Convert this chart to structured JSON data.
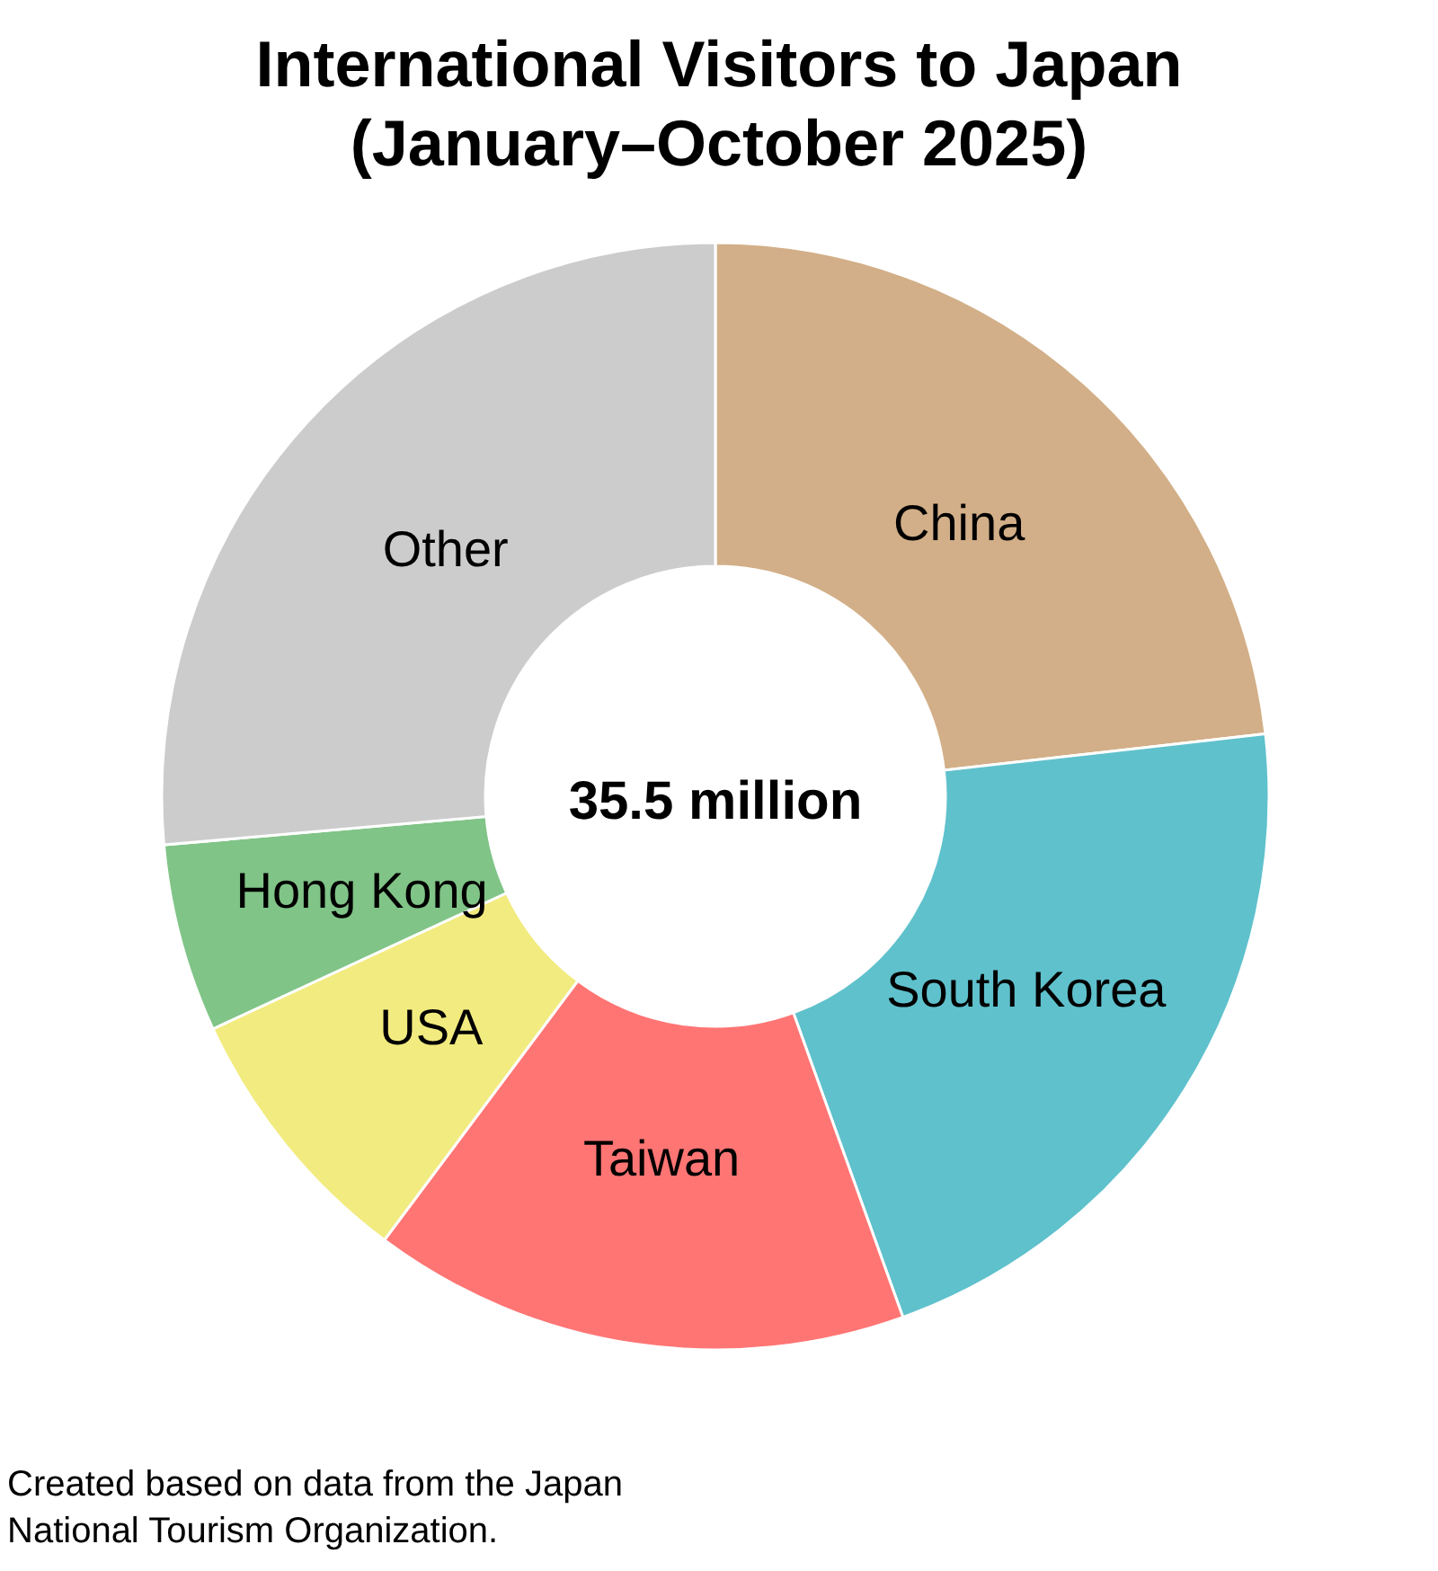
{
  "chart_data": {
    "type": "donut",
    "title": "International Visitors to Japan\n(January–October 2025)",
    "categories": [
      "China",
      "South Korea",
      "Taiwan",
      "USA",
      "Hong Kong",
      "Other"
    ],
    "values": [
      23.2,
      21.3,
      15.7,
      7.9,
      5.5,
      26.4
    ],
    "colors": [
      "#d2af88",
      "#5fc1cc",
      "#ff7574",
      "#f2eb7f",
      "#80c487",
      "#cccccc"
    ],
    "annotations": [
      "35.5 million",
      "Created based on data from the Japan National Tourism Organization."
    ]
  }
}
